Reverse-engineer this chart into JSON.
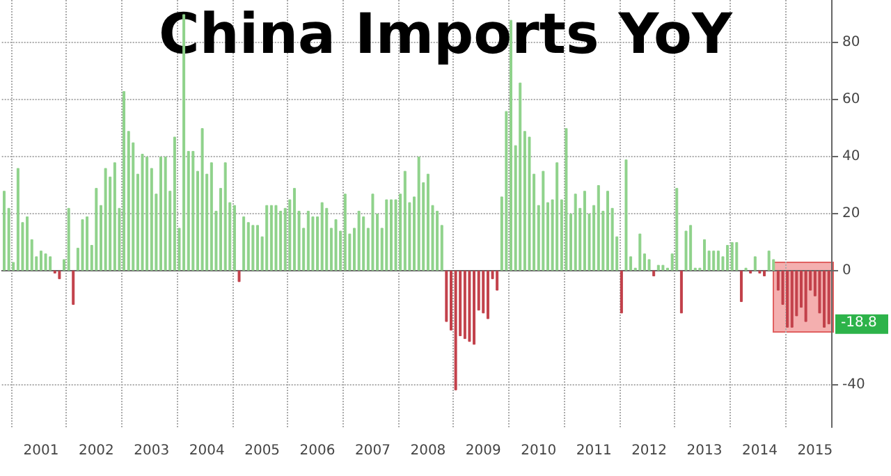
{
  "chart_data": {
    "type": "bar",
    "title": "China Imports YoY",
    "categories": [
      null,
      null,
      null,
      null,
      null,
      null,
      null,
      null,
      "2001",
      null,
      null,
      null,
      null,
      null,
      null,
      null,
      null,
      null,
      null,
      null,
      "2002",
      null,
      null,
      null,
      null,
      null,
      null,
      null,
      null,
      null,
      null,
      null,
      "2003",
      null,
      null,
      null,
      null,
      null,
      null,
      null,
      null,
      null,
      null,
      null,
      "2004",
      null,
      null,
      null,
      null,
      null,
      null,
      null,
      null,
      null,
      null,
      null,
      "2005",
      null,
      null,
      null,
      null,
      null,
      null,
      null,
      null,
      null,
      null,
      null,
      "2006",
      null,
      null,
      null,
      null,
      null,
      null,
      null,
      null,
      null,
      null,
      null,
      "2007",
      null,
      null,
      null,
      null,
      null,
      null,
      null,
      null,
      null,
      null,
      null,
      "2008",
      null,
      null,
      null,
      null,
      null,
      null,
      null,
      null,
      null,
      null,
      null,
      "2009",
      null,
      null,
      null,
      null,
      null,
      null,
      null,
      null,
      null,
      null,
      null,
      "2010",
      null,
      null,
      null,
      null,
      null,
      null,
      null,
      null,
      null,
      null,
      null,
      "2011",
      null,
      null,
      null,
      null,
      null,
      null,
      null,
      null,
      null,
      null,
      null,
      "2012",
      null,
      null,
      null,
      null,
      null,
      null,
      null,
      null,
      null,
      null,
      null,
      "2013",
      null,
      null,
      null,
      null,
      null,
      null,
      null,
      null,
      null,
      null,
      null,
      "2014",
      null,
      null,
      null,
      null,
      null,
      null,
      null,
      null,
      null,
      null,
      null,
      "2015",
      null,
      null,
      null
    ],
    "series": [
      {
        "color": "#8fd28b",
        "values": [
          28,
          22,
          3,
          36,
          17,
          19,
          11,
          5,
          7,
          6,
          5,
          null,
          null,
          4,
          22,
          null,
          8,
          18,
          19,
          9,
          29,
          23,
          36,
          33,
          38,
          22,
          63,
          49,
          45,
          34,
          41,
          40,
          36,
          27,
          40,
          40,
          28,
          47,
          15,
          90,
          42,
          42,
          35,
          50,
          34,
          38,
          21,
          29,
          38,
          24,
          23,
          null,
          19,
          17,
          16,
          16,
          12,
          23,
          23,
          23,
          21,
          22,
          25,
          29,
          21,
          15,
          21,
          19,
          19,
          24,
          22,
          15,
          18,
          14,
          27,
          13,
          15,
          21,
          19,
          15,
          27,
          20,
          15,
          25,
          25,
          25,
          27,
          35,
          24,
          26,
          40,
          31,
          34,
          23,
          21,
          16,
          null,
          null,
          null,
          null,
          null,
          null,
          null,
          null,
          null,
          null,
          null,
          null,
          26,
          56,
          88,
          44,
          66,
          49,
          47,
          34,
          23,
          35,
          24,
          25,
          38,
          25,
          50,
          20,
          27,
          22,
          28,
          20,
          23,
          30,
          21,
          28,
          22,
          12,
          null,
          39,
          5,
          1,
          13,
          6,
          4,
          null,
          2,
          2,
          1,
          6,
          29,
          null,
          14,
          16,
          1,
          1,
          11,
          7,
          7,
          7,
          5,
          9,
          10,
          10,
          null,
          1,
          null,
          5,
          null,
          null,
          7,
          4,
          null,
          null,
          null,
          null,
          null,
          null,
          null,
          null,
          null,
          null,
          null,
          null
        ]
      },
      {
        "color": "#c2404a",
        "values": [
          null,
          null,
          null,
          null,
          null,
          null,
          null,
          null,
          null,
          null,
          null,
          -1,
          -3,
          null,
          null,
          -12,
          null,
          null,
          null,
          null,
          null,
          null,
          null,
          null,
          null,
          null,
          null,
          null,
          null,
          null,
          null,
          null,
          null,
          null,
          null,
          null,
          null,
          null,
          null,
          null,
          null,
          null,
          null,
          null,
          null,
          null,
          null,
          null,
          null,
          null,
          null,
          -4,
          null,
          null,
          null,
          null,
          null,
          null,
          null,
          null,
          null,
          null,
          null,
          null,
          null,
          null,
          null,
          null,
          null,
          null,
          null,
          null,
          null,
          null,
          null,
          null,
          null,
          null,
          null,
          null,
          null,
          null,
          null,
          null,
          null,
          null,
          null,
          null,
          null,
          null,
          null,
          null,
          null,
          null,
          null,
          null,
          -18,
          -21,
          -42,
          -23,
          -24,
          -25,
          -26,
          -14,
          -15,
          -17,
          -3,
          -7,
          null,
          null,
          null,
          null,
          null,
          null,
          null,
          null,
          null,
          null,
          null,
          null,
          null,
          null,
          null,
          null,
          null,
          null,
          null,
          null,
          null,
          null,
          null,
          null,
          null,
          null,
          -15,
          null,
          null,
          null,
          null,
          null,
          null,
          -2,
          null,
          null,
          null,
          null,
          null,
          -15,
          null,
          null,
          null,
          null,
          null,
          null,
          null,
          null,
          null,
          null,
          null,
          null,
          -11,
          null,
          -1,
          null,
          -1,
          -2,
          null,
          null,
          -7,
          -12,
          -20,
          -20,
          -16,
          -13,
          -18,
          -7,
          -9,
          -15,
          -20,
          -18.8
        ]
      }
    ],
    "ylim": [
      -55,
      95
    ],
    "yticks": [
      -40,
      0,
      20,
      40,
      60,
      80
    ],
    "grid": true,
    "annotations": [
      "-18.8"
    ]
  }
}
